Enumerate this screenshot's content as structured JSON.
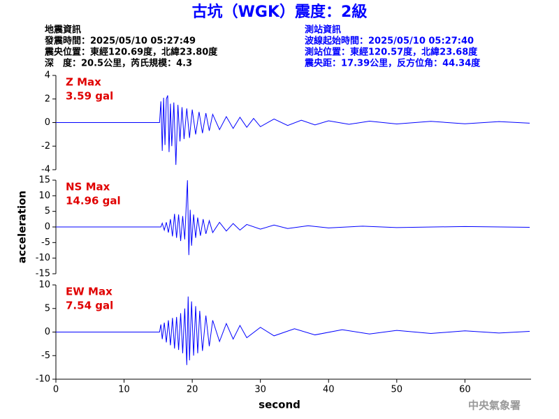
{
  "header": {
    "title": "古坑（WGK）震度：2級",
    "left": [
      "地震資訊",
      "發震時間：2025/05/10 05:27:49",
      "震央位置：東經120.69度，北緯23.80度",
      "深　度：20.5公里，芮氏規模：4.3"
    ],
    "right": [
      "測站資訊",
      "波線起始時間：2025/05/10 05:27:40",
      "測站位置：東經120.57度，北緯23.68度",
      "震央距：17.39公里，反方位角：44.34度"
    ]
  },
  "footer": "中央氣象署",
  "chart_data": [
    {
      "type": "line",
      "annotations": [
        "Z Max",
        "3.59 gal"
      ],
      "color": "#0000ff",
      "xlim": [
        0,
        69.7
      ],
      "ylim": [
        -4,
        4
      ],
      "yticks": [
        -4,
        -2,
        0,
        2,
        4
      ],
      "x": [
        0,
        15.2,
        15.4,
        15.6,
        15.8,
        16.0,
        16.2,
        16.4,
        16.6,
        16.8,
        17.0,
        17.3,
        17.6,
        17.9,
        18.2,
        18.5,
        18.8,
        19.2,
        19.6,
        20.0,
        20.5,
        21,
        21.5,
        22,
        22.5,
        23,
        24,
        25,
        26,
        27,
        28,
        29,
        30,
        32,
        34,
        36,
        38,
        40,
        43,
        46,
        50,
        55,
        60,
        65,
        69.5
      ],
      "values": [
        0,
        0,
        1.8,
        -2.4,
        2.1,
        -1.9,
        2.0,
        2.3,
        -2.5,
        1.6,
        -2.0,
        1.7,
        -3.59,
        1.5,
        -1.6,
        1.3,
        -1.4,
        1.2,
        -1.3,
        1.1,
        -1.0,
        0.9,
        -0.9,
        0.8,
        -0.7,
        0.7,
        -0.6,
        0.5,
        -0.5,
        0.45,
        -0.4,
        0.35,
        -0.35,
        0.3,
        -0.25,
        0.2,
        -0.2,
        0.15,
        -0.15,
        0.12,
        -0.12,
        0.1,
        -0.1,
        0.08,
        -0.05
      ]
    },
    {
      "type": "line",
      "annotations": [
        "NS Max",
        "14.96 gal"
      ],
      "color": "#0000ff",
      "ylabel": "acceleration",
      "xlim": [
        0,
        69.7
      ],
      "ylim": [
        -15,
        15
      ],
      "yticks": [
        -15,
        -10,
        -5,
        0,
        5,
        10,
        15
      ],
      "x": [
        0,
        15.4,
        15.6,
        15.9,
        16.2,
        16.5,
        16.8,
        17.1,
        17.4,
        17.7,
        18.0,
        18.3,
        18.6,
        18.9,
        19.1,
        19.3,
        19.5,
        19.7,
        19.9,
        20.2,
        20.5,
        20.8,
        21.2,
        21.6,
        22,
        22.5,
        23,
        24,
        25,
        26,
        27,
        28,
        30,
        32,
        34,
        37,
        40,
        45,
        50,
        60,
        69.5
      ],
      "values": [
        0,
        0,
        1.2,
        -1.0,
        1.5,
        -1.8,
        2.5,
        -3.0,
        4.2,
        -3.5,
        4.0,
        -4.5,
        3.5,
        -4.0,
        6.0,
        14.96,
        -9.0,
        5.5,
        -6.0,
        4.0,
        -3.5,
        3.0,
        -2.8,
        2.5,
        -2.2,
        2.0,
        -1.8,
        1.5,
        -1.3,
        1.1,
        -1.0,
        0.8,
        -0.7,
        0.6,
        -0.5,
        0.4,
        -0.3,
        0.25,
        -0.2,
        0.15,
        -0.1
      ]
    },
    {
      "type": "line",
      "annotations": [
        "EW Max",
        "7.54 gal"
      ],
      "color": "#0000ff",
      "xlabel": "second",
      "xlim": [
        0,
        69.7
      ],
      "ylim": [
        -10,
        10
      ],
      "yticks": [
        -10,
        -5,
        0,
        5,
        10
      ],
      "xticks": [
        0,
        10,
        20,
        30,
        40,
        50,
        60
      ],
      "x": [
        0,
        15.2,
        15.4,
        15.6,
        15.9,
        16.2,
        16.5,
        16.8,
        17.1,
        17.4,
        17.7,
        18.0,
        18.3,
        18.6,
        18.9,
        19.2,
        19.4,
        19.6,
        19.9,
        20.2,
        20.5,
        20.8,
        21.1,
        21.5,
        22,
        22.5,
        23,
        24,
        25,
        26,
        27,
        28,
        30,
        32,
        35,
        38,
        42,
        46,
        50,
        55,
        60,
        65,
        69.5
      ],
      "values": [
        0,
        0,
        1.6,
        -1.5,
        2.0,
        -2.2,
        2.5,
        -2.8,
        3.0,
        -3.5,
        3.2,
        -3.8,
        4.0,
        -4.5,
        5.0,
        -7.0,
        7.54,
        -6.0,
        6.5,
        -5.0,
        5.5,
        -4.5,
        4.5,
        -4.0,
        3.5,
        -3.0,
        2.5,
        -2.0,
        1.8,
        -1.5,
        1.4,
        -1.2,
        1.0,
        -0.8,
        0.7,
        -0.6,
        0.5,
        -0.4,
        0.35,
        -0.3,
        0.25,
        -0.2,
        0.15
      ]
    }
  ]
}
